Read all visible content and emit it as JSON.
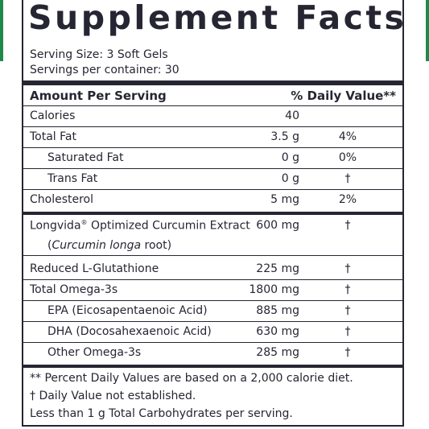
{
  "title": "Supplement Facts",
  "serving_size": "Serving Size: 3 Soft Gels",
  "servings_per_container": "Servings per container: 30",
  "header": {
    "left": "Amount Per Serving",
    "right": "% Daily Value**"
  },
  "rows": [
    {
      "name": "Calories",
      "amount": "40",
      "dv": ""
    },
    {
      "name": "Total Fat",
      "amount": "3.5 g",
      "dv": "4%"
    },
    {
      "name": "Saturated Fat",
      "amount": "0 g",
      "dv": "0%"
    },
    {
      "name": "Trans Fat",
      "amount": "0 g",
      "dv": "†"
    },
    {
      "name": "Cholesterol",
      "amount": "5 mg",
      "dv": "2%"
    }
  ],
  "curcumin": {
    "name_prefix": "Longvida",
    "trademark": "®",
    "name_suffix": " Optimized Curcumin Extract",
    "amount": "600 mg",
    "dv": "†",
    "paren_open": "(",
    "sub_italic": "Curcumin longa",
    "sub_rest": " root)"
  },
  "rows2": [
    {
      "name": "Reduced L-Glutathione",
      "amount": "225 mg",
      "dv": "†"
    },
    {
      "name": "Total Omega-3s",
      "amount": "1800 mg",
      "dv": "†"
    },
    {
      "name": "EPA (Eicosapentaenoic Acid)",
      "amount": "885 mg",
      "dv": "†"
    },
    {
      "name": "DHA (Docosahexaenoic Acid)",
      "amount": "630 mg",
      "dv": "†"
    },
    {
      "name": "Other Omega-3s",
      "amount": "285 mg",
      "dv": "†"
    }
  ],
  "footnotes": [
    "** Percent Daily Values are based on a 2,000 calorie diet.",
    "†  Daily Value not established.",
    "Less than 1 g Total Carbohydrates per serving."
  ],
  "colors": {
    "ink": "#262633",
    "accent": "#1d8a4c"
  }
}
